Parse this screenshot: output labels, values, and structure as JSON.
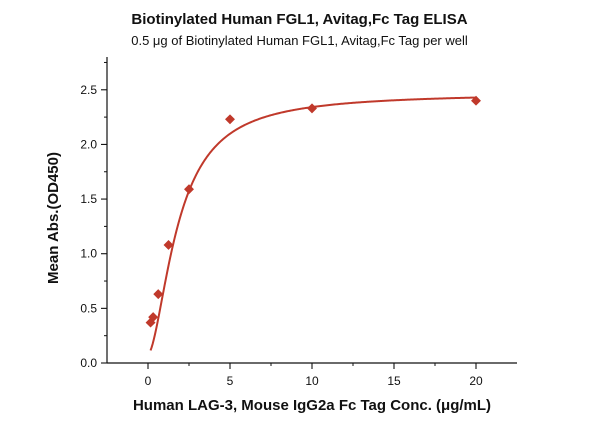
{
  "chart_data": {
    "type": "scatter",
    "title": "Biotinylated Human FGL1, Avitag,Fc Tag ELISA",
    "subtitle": "0.5 μg of Biotinylated Human FGL1, Avitag,Fc Tag per well",
    "xlabel": "Human LAG-3, Mouse IgG2a Fc Tag Conc. (μg/mL)",
    "ylabel": "Mean Abs.(OD450)",
    "xlim": [
      -2.5,
      22.5
    ],
    "ylim": [
      0,
      2.8
    ],
    "xticks": [
      "0",
      "5",
      "10",
      "15",
      "20"
    ],
    "yticks": [
      "0.0",
      "0.5",
      "1.0",
      "1.5",
      "2.0",
      "2.5"
    ],
    "grid": false,
    "legend": "none",
    "colors": {
      "marker": "#c0392b",
      "curve": "#c0392b",
      "axis": "#111111"
    },
    "series": [
      {
        "x": [
          0.156,
          0.3125,
          0.625,
          1.25,
          2.5,
          5,
          10,
          20
        ],
        "y": [
          0.37,
          0.42,
          0.63,
          1.08,
          1.59,
          2.23,
          2.33,
          2.4
        ]
      }
    ],
    "fit": {
      "type": "4PL",
      "params": {
        "bottom": 0.08,
        "top": 2.47,
        "ec50": 1.85,
        "hill": 1.7
      }
    }
  }
}
